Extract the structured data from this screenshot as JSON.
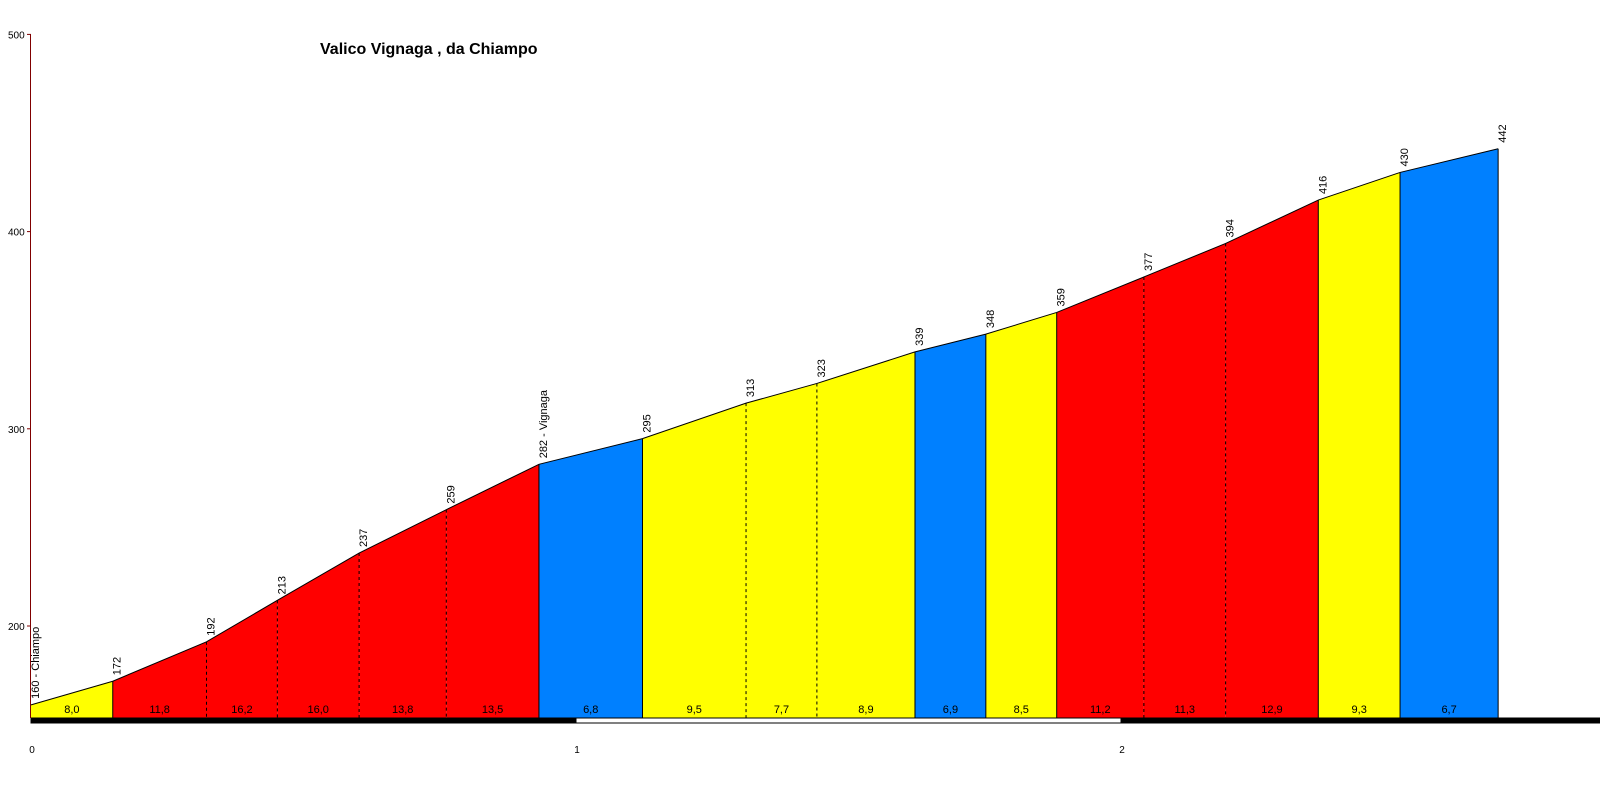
{
  "chart_data": {
    "type": "area",
    "title": "Valico Vignaga , da Chiampo",
    "xlabel": "",
    "ylabel": "",
    "xlim": [
      0,
      2.82
    ],
    "ylim": [
      150,
      500
    ],
    "y_ticks": [
      200,
      300,
      400,
      500
    ],
    "x_ticks": [
      0,
      1,
      2
    ],
    "grid": false,
    "legend": "none",
    "colors": {
      "yellow": "#ffff00",
      "red": "#ff0000",
      "blue": "#0080ff",
      "outline": "#000000",
      "y_axis": "#800000"
    },
    "points": [
      {
        "x": 0.0,
        "elevation": 160,
        "label": "160 - Chiampo"
      },
      {
        "x": 0.15,
        "elevation": 172,
        "label": "172"
      },
      {
        "x": 0.322,
        "elevation": 192,
        "label": "192"
      },
      {
        "x": 0.452,
        "elevation": 213,
        "label": "213"
      },
      {
        "x": 0.602,
        "elevation": 237,
        "label": "237"
      },
      {
        "x": 0.762,
        "elevation": 259,
        "label": "259"
      },
      {
        "x": 0.932,
        "elevation": 282,
        "label": "282 - Vignaga"
      },
      {
        "x": 1.122,
        "elevation": 295,
        "label": "295"
      },
      {
        "x": 1.312,
        "elevation": 313,
        "label": "313"
      },
      {
        "x": 1.442,
        "elevation": 323,
        "label": "323"
      },
      {
        "x": 1.622,
        "elevation": 339,
        "label": "339"
      },
      {
        "x": 1.752,
        "elevation": 348,
        "label": "348"
      },
      {
        "x": 1.882,
        "elevation": 359,
        "label": "359"
      },
      {
        "x": 2.042,
        "elevation": 377,
        "label": "377"
      },
      {
        "x": 2.192,
        "elevation": 394,
        "label": "394"
      },
      {
        "x": 2.362,
        "elevation": 416,
        "label": "416"
      },
      {
        "x": 2.512,
        "elevation": 430,
        "label": "430"
      },
      {
        "x": 2.692,
        "elevation": 442,
        "label": "442"
      }
    ],
    "segments": [
      {
        "gradient": "8,0",
        "color": "yellow"
      },
      {
        "gradient": "11,8",
        "color": "red"
      },
      {
        "gradient": "16,2",
        "color": "red"
      },
      {
        "gradient": "16,0",
        "color": "red"
      },
      {
        "gradient": "13,8",
        "color": "red"
      },
      {
        "gradient": "13,5",
        "color": "red"
      },
      {
        "gradient": "6,8",
        "color": "blue"
      },
      {
        "gradient": "9,5",
        "color": "yellow"
      },
      {
        "gradient": "7,7",
        "color": "yellow"
      },
      {
        "gradient": "8,9",
        "color": "yellow"
      },
      {
        "gradient": "6,9",
        "color": "blue"
      },
      {
        "gradient": "8,5",
        "color": "yellow"
      },
      {
        "gradient": "11,2",
        "color": "red"
      },
      {
        "gradient": "11,3",
        "color": "red"
      },
      {
        "gradient": "12,9",
        "color": "red"
      },
      {
        "gradient": "9,3",
        "color": "yellow"
      },
      {
        "gradient": "6,7",
        "color": "blue"
      }
    ],
    "solid_boundaries": [
      1,
      6,
      7,
      10,
      11,
      12,
      15,
      16
    ]
  }
}
